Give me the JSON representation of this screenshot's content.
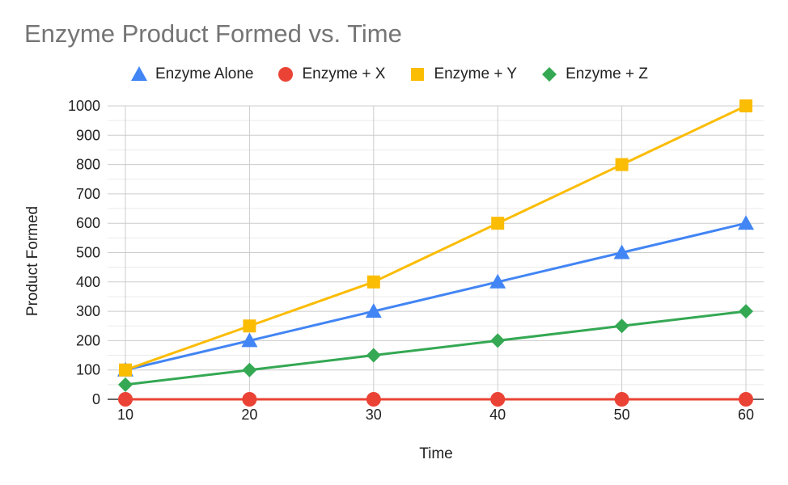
{
  "chart_data": {
    "type": "line",
    "title": "Enzyme Product Formed vs. Time",
    "xlabel": "Time",
    "ylabel": "Product Formed",
    "x": [
      10,
      20,
      30,
      40,
      50,
      60
    ],
    "xlim": [
      10,
      60
    ],
    "ylim": [
      0,
      1000
    ],
    "yticks": [
      0,
      100,
      200,
      300,
      400,
      500,
      600,
      700,
      800,
      900,
      1000
    ],
    "grid": true,
    "legend_position": "top",
    "series": [
      {
        "name": "Enzyme Alone",
        "values": [
          100,
          200,
          300,
          400,
          500,
          600
        ],
        "color": "#4285f4",
        "marker": "triangle"
      },
      {
        "name": "Enzyme + X",
        "values": [
          0,
          0,
          0,
          0,
          0,
          0
        ],
        "color": "#ea4335",
        "marker": "circle"
      },
      {
        "name": "Enzyme + Y",
        "values": [
          100,
          250,
          400,
          600,
          800,
          1000
        ],
        "color": "#fbbc04",
        "marker": "square"
      },
      {
        "name": "Enzyme + Z",
        "values": [
          50,
          100,
          150,
          200,
          250,
          300
        ],
        "color": "#34a853",
        "marker": "diamond"
      }
    ]
  }
}
